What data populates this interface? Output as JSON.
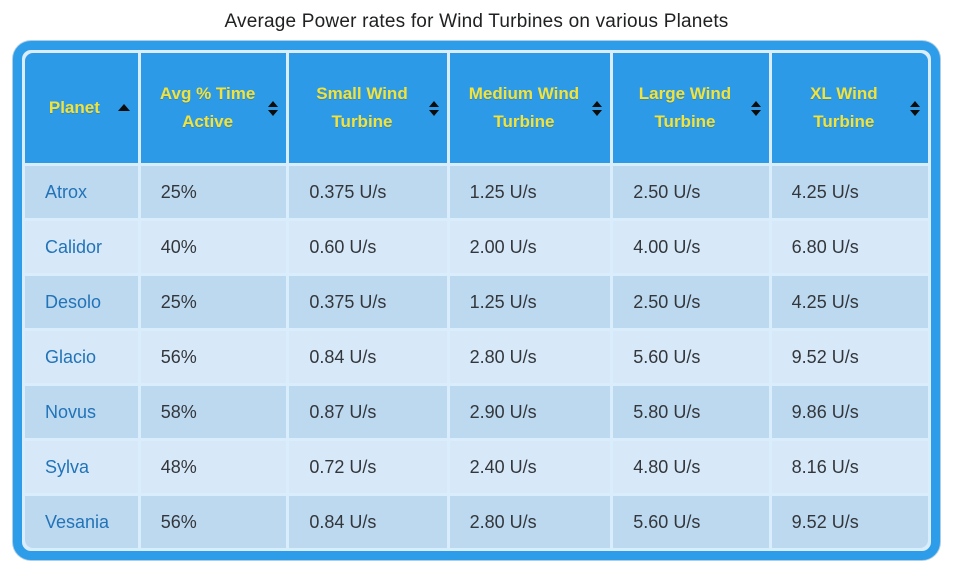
{
  "page": {
    "title": "Average Power rates for Wind Turbines on various Planets"
  },
  "colors": {
    "frame_border": "#2d9ce9",
    "header_bg": "#2d9ae8",
    "header_text": "#f1e33f",
    "row_odd_bg": "#bdd9ef",
    "row_even_bg": "#d7e9f8",
    "planet_link_text": "#2273b8",
    "cell_text": "#33363b",
    "sort_icon": "#0d0d0d",
    "title_text": "#202122"
  },
  "chart_data": {
    "type": "table",
    "title": "Average Power rates for Wind Turbines on various Planets",
    "columns": [
      {
        "label": "Planet",
        "sort_state": "ascending",
        "icon": "sort-ascending-icon"
      },
      {
        "label": "Avg % Time Active",
        "sort_state": "unsorted",
        "icon": "sort-both-icon"
      },
      {
        "label": "Small Wind Turbine",
        "sort_state": "unsorted",
        "icon": "sort-both-icon"
      },
      {
        "label": "Medium Wind Turbine",
        "sort_state": "unsorted",
        "icon": "sort-both-icon"
      },
      {
        "label": "Large Wind Turbine",
        "sort_state": "unsorted",
        "icon": "sort-both-icon"
      },
      {
        "label": "XL Wind Turbine",
        "sort_state": "unsorted",
        "icon": "sort-both-icon"
      }
    ],
    "rows": [
      [
        "Atrox",
        "25%",
        "0.375 U/s",
        "1.25 U/s",
        "2.50 U/s",
        "4.25 U/s"
      ],
      [
        "Calidor",
        "40%",
        "0.60 U/s",
        "2.00 U/s",
        "4.00 U/s",
        "6.80 U/s"
      ],
      [
        "Desolo",
        "25%",
        "0.375 U/s",
        "1.25 U/s",
        "2.50 U/s",
        "4.25 U/s"
      ],
      [
        "Glacio",
        "56%",
        "0.84 U/s",
        "2.80 U/s",
        "5.60 U/s",
        "9.52 U/s"
      ],
      [
        "Novus",
        "58%",
        "0.87 U/s",
        "2.90 U/s",
        "5.80 U/s",
        "9.86 U/s"
      ],
      [
        "Sylva",
        "48%",
        "0.72 U/s",
        "2.40 U/s",
        "4.80 U/s",
        "8.16 U/s"
      ],
      [
        "Vesania",
        "56%",
        "0.84 U/s",
        "2.80 U/s",
        "5.60 U/s",
        "9.52 U/s"
      ]
    ]
  }
}
